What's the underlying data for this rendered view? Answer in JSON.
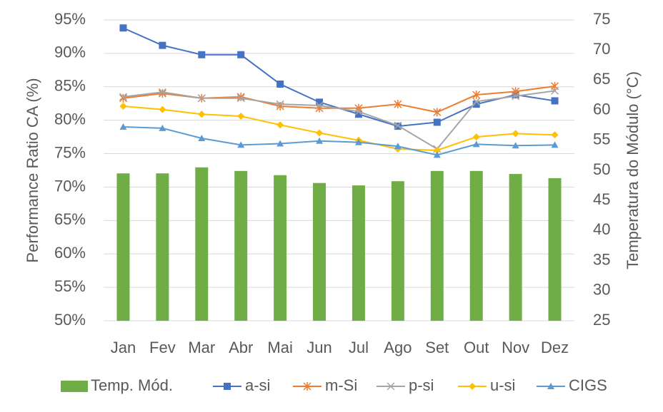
{
  "chart_data": {
    "type": "combo",
    "categories": [
      "Jan",
      "Fev",
      "Mar",
      "Abr",
      "Mai",
      "Jun",
      "Jul",
      "Ago",
      "Set",
      "Out",
      "Nov",
      "Dez"
    ],
    "y_label": "Performance Ratio CA (%)",
    "y2_label": "Temperatura do Módulo (°C)",
    "ylim": [
      50,
      95
    ],
    "yticks": [
      {
        "value": 50,
        "label": "50%"
      },
      {
        "value": 55,
        "label": "55%"
      },
      {
        "value": 60,
        "label": "60%"
      },
      {
        "value": 65,
        "label": "65%"
      },
      {
        "value": 70,
        "label": "70%"
      },
      {
        "value": 75,
        "label": "75%"
      },
      {
        "value": 80,
        "label": "80%"
      },
      {
        "value": 85,
        "label": "85%"
      },
      {
        "value": 90,
        "label": "90%"
      },
      {
        "value": 95,
        "label": "95%"
      }
    ],
    "y2lim": [
      25,
      75
    ],
    "y2ticks": [
      25,
      30,
      35,
      40,
      45,
      50,
      55,
      60,
      65,
      70,
      75
    ],
    "grid": true,
    "legend": "bottom",
    "series": [
      {
        "name": "Temp. Mód.",
        "type": "bar",
        "axis": "y2",
        "color": "#70ad47",
        "values": [
          49.5,
          49.5,
          50.5,
          49.9,
          49.2,
          47.9,
          47.5,
          48.2,
          49.9,
          49.9,
          49.4,
          48.7
        ]
      },
      {
        "name": "a-si",
        "type": "line",
        "marker": "square",
        "color": "#4472c4",
        "values": [
          93.8,
          91.2,
          89.8,
          89.8,
          85.4,
          82.7,
          80.9,
          79.1,
          79.7,
          82.4,
          83.8,
          82.9
        ]
      },
      {
        "name": "m-Si",
        "type": "line",
        "marker": "asterisk",
        "color": "#ed7d31",
        "values": [
          83.3,
          84.0,
          83.3,
          83.5,
          82.1,
          81.8,
          81.8,
          82.4,
          81.2,
          83.8,
          84.3,
          85.1
        ]
      },
      {
        "name": "p-si",
        "type": "line",
        "marker": "x",
        "color": "#a5a5a5",
        "values": [
          83.5,
          84.2,
          83.3,
          83.3,
          82.4,
          82.2,
          81.3,
          79.2,
          75.7,
          82.8,
          83.6,
          84.4
        ]
      },
      {
        "name": "u-si",
        "type": "line",
        "marker": "diamond",
        "color": "#ffc000",
        "values": [
          82.1,
          81.6,
          80.9,
          80.6,
          79.3,
          78.1,
          77.0,
          75.7,
          75.5,
          77.5,
          78.0,
          77.8
        ]
      },
      {
        "name": "CIGS",
        "type": "line",
        "marker": "triangle",
        "color": "#5b9bd5",
        "values": [
          79.0,
          78.8,
          77.3,
          76.3,
          76.5,
          76.9,
          76.7,
          76.1,
          74.8,
          76.4,
          76.2,
          76.3
        ]
      }
    ]
  }
}
